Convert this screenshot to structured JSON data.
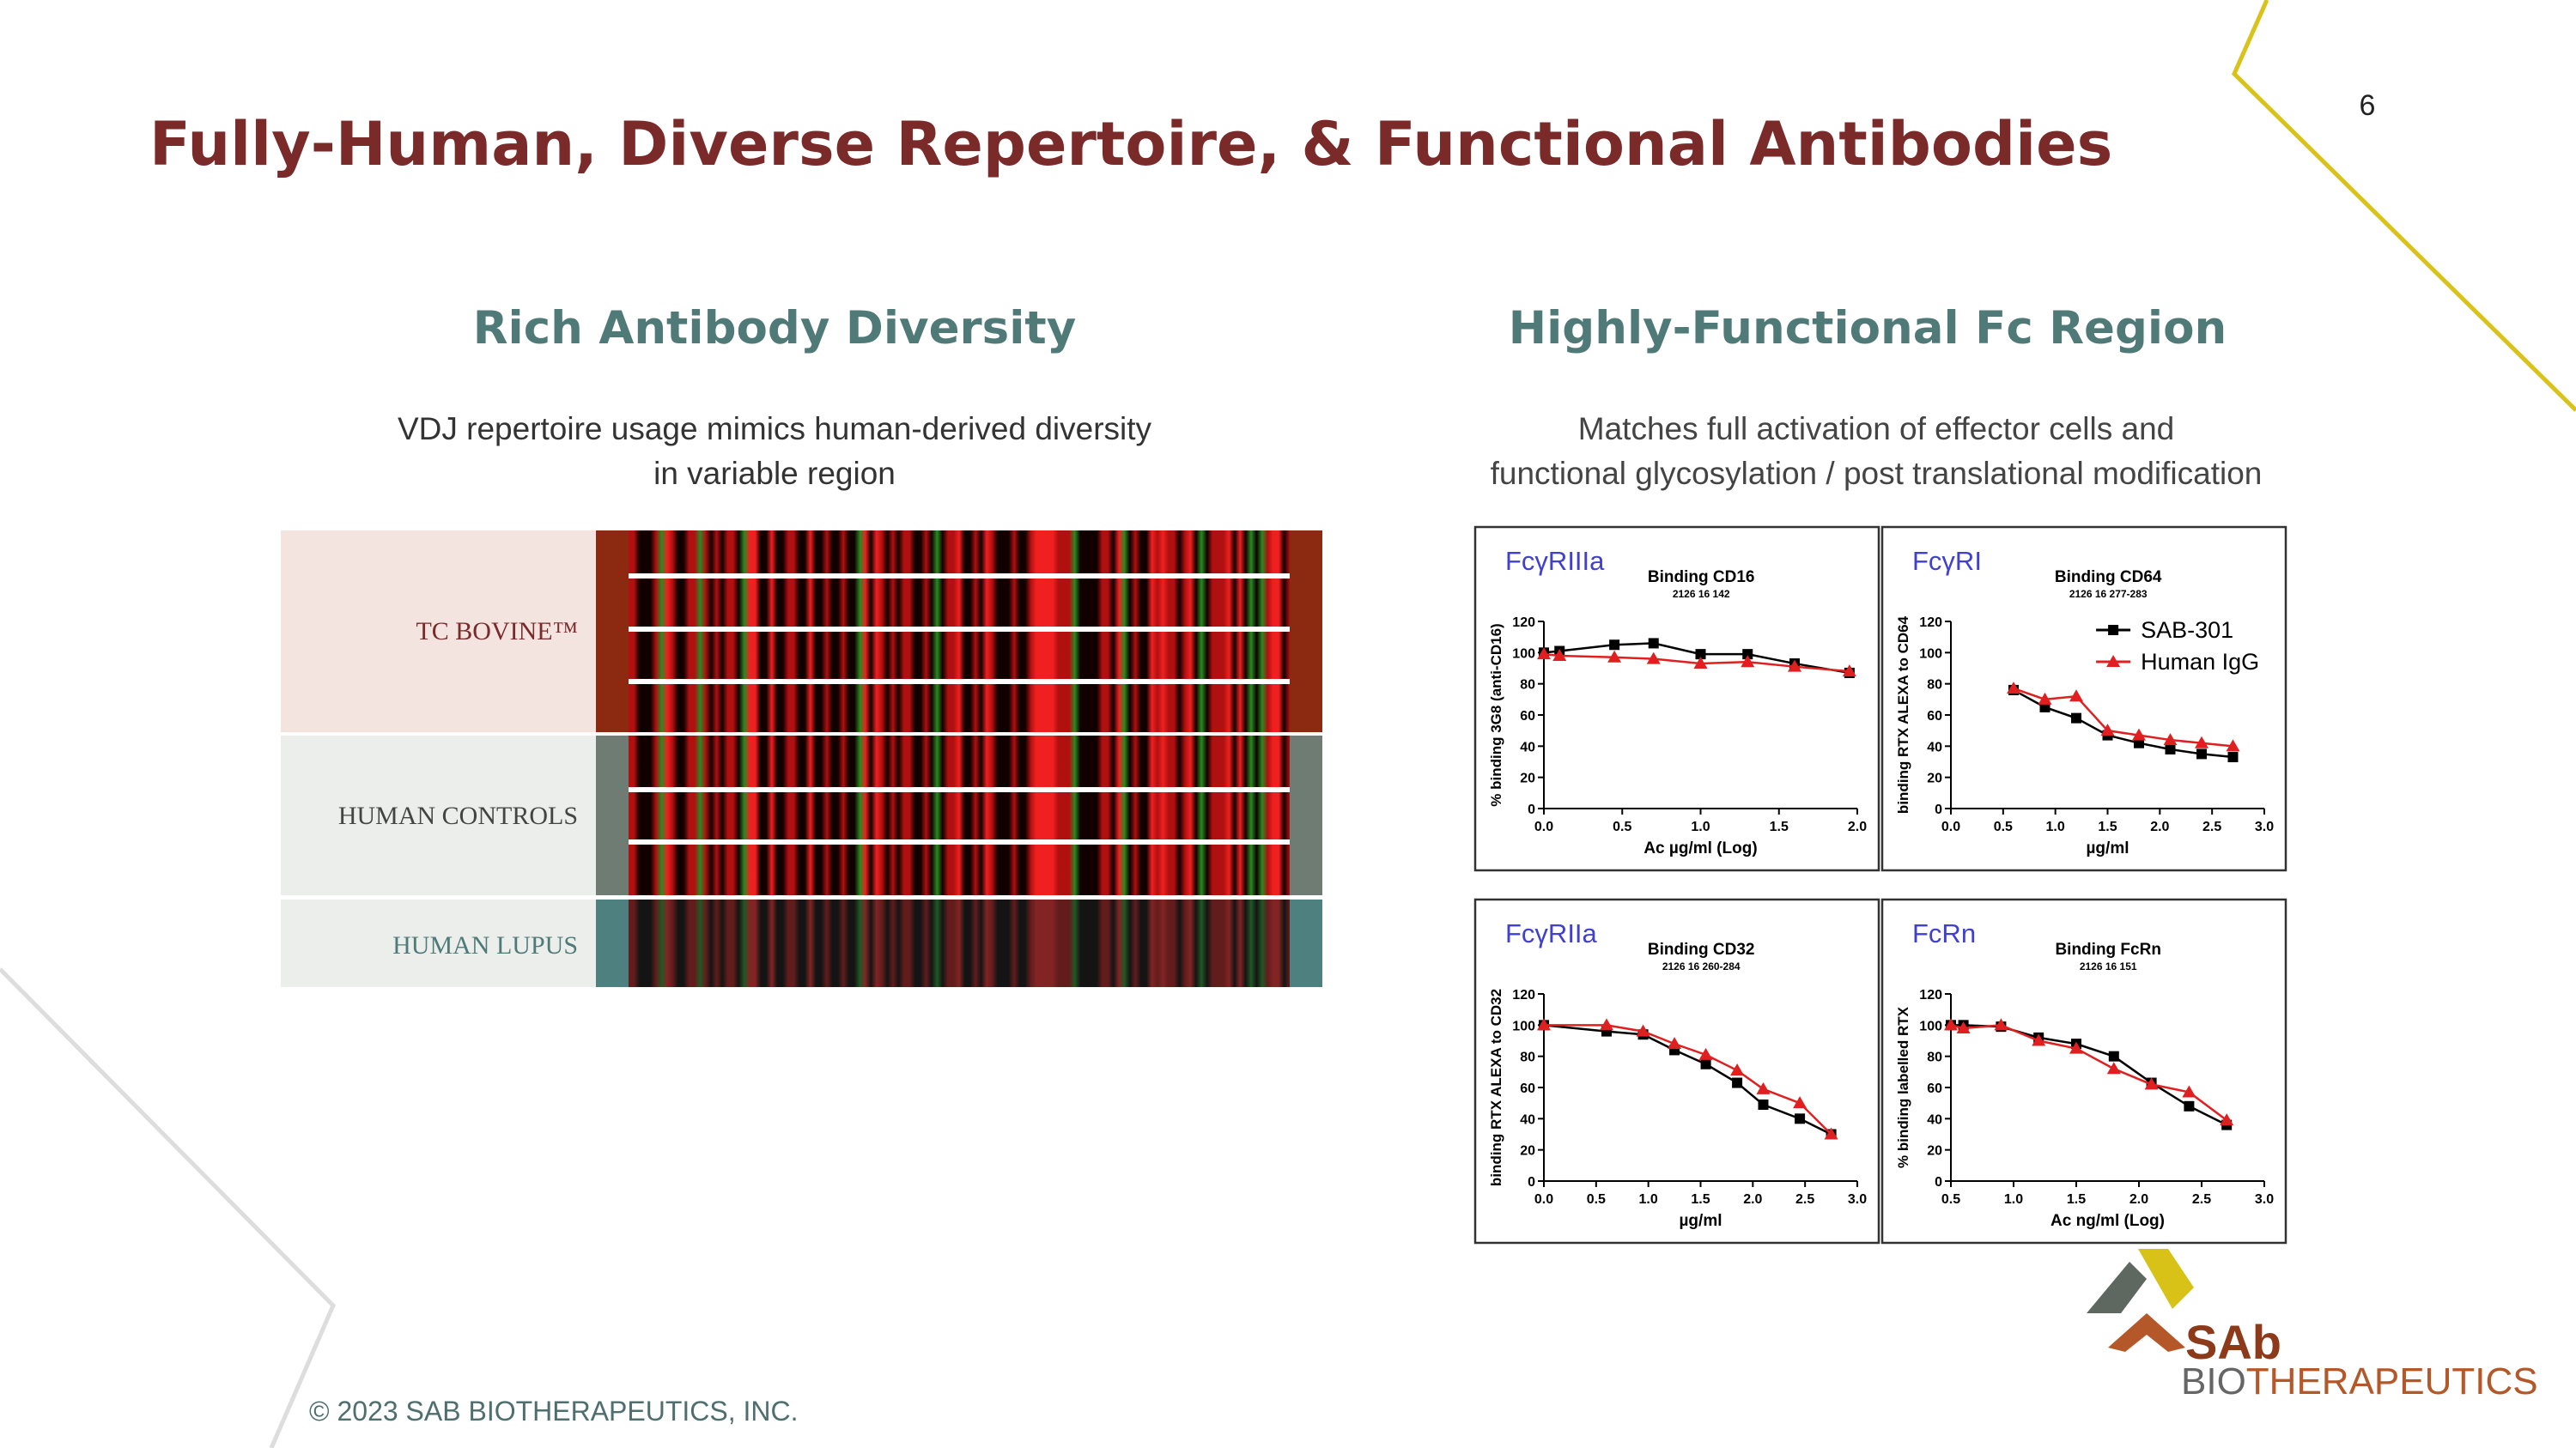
{
  "page_number": "6",
  "title": "Fully-Human, Diverse Repertoire, & Functional Antibodies",
  "left": {
    "heading": "Rich Antibody Diversity",
    "text_lines": [
      "VDJ repertoire usage mimics human-derived diversity",
      "in variable region"
    ],
    "rows": [
      "TC BOVINE™",
      "HUMAN CONTROLS",
      "HUMAN LUPUS"
    ]
  },
  "right": {
    "heading": "Highly-Functional Fc Region",
    "text_lines": [
      "Matches full activation of effector cells and",
      "functional glycosylation / post translational modification"
    ]
  },
  "chart_data": [
    {
      "type": "line",
      "label": "FcγRIIIa",
      "title": "Binding CD16",
      "subtitle": "2126 16 142",
      "y_label": "% binding 3G8 (anti-CD16)",
      "x_label": "Ac µg/ml (Log)",
      "x": [
        0,
        0.1,
        0.45,
        0.7,
        1.0,
        1.3,
        1.6,
        1.95
      ],
      "series": [
        {
          "color": "#000000",
          "marker": "square",
          "values": [
            100,
            101,
            105,
            106,
            99,
            99,
            93,
            87
          ]
        },
        {
          "color": "#e02020",
          "marker": "triangle",
          "values": [
            99,
            98,
            97,
            96,
            93,
            94,
            91,
            88
          ]
        }
      ],
      "xlim": [
        0,
        2
      ],
      "xticks": [
        {
          "value": 0,
          "label": "0.0"
        },
        0.5,
        {
          "value": 1,
          "label": "1.0"
        },
        1.5,
        {
          "value": 2,
          "label": "2.0"
        }
      ],
      "ylim": [
        0,
        120
      ],
      "yticks": [
        0,
        20,
        40,
        60,
        80,
        100,
        120
      ]
    },
    {
      "type": "line",
      "label": "FcγRI",
      "title": "Binding CD64",
      "subtitle": "2126 16 277-283",
      "y_label": "binding RTX ALEXA to CD64",
      "x_label": "µg/ml",
      "x": [
        0.6,
        0.9,
        1.2,
        1.5,
        1.8,
        2.1,
        2.4,
        2.7
      ],
      "series": [
        {
          "name": "SAB-301",
          "color": "#000000",
          "marker": "square",
          "values": [
            76,
            65,
            58,
            47,
            42,
            38,
            35,
            33
          ]
        },
        {
          "name": "Human IgG",
          "color": "#e02020",
          "marker": "triangle",
          "values": [
            77,
            70,
            72,
            50,
            47,
            44,
            42,
            40
          ]
        }
      ],
      "xlim": [
        0,
        3
      ],
      "xticks": [
        {
          "value": 0,
          "label": "0.0"
        },
        0.5,
        {
          "value": 1,
          "label": "1.0"
        },
        1.5,
        {
          "value": 2,
          "label": "2.0"
        },
        2.5,
        {
          "value": 3,
          "label": "3.0"
        }
      ],
      "ylim": [
        0,
        120
      ],
      "yticks": [
        0,
        20,
        40,
        60,
        80,
        100,
        120
      ],
      "legend": "upper right"
    },
    {
      "type": "line",
      "label": "FcγRIIa",
      "title": "Binding CD32",
      "subtitle": "2126 16 260-284",
      "y_label": "binding RTX ALEXA to CD32",
      "x_label": "µg/ml",
      "x": [
        0,
        0.6,
        0.95,
        1.25,
        1.55,
        1.85,
        2.1,
        2.45,
        2.75
      ],
      "series": [
        {
          "color": "#000000",
          "marker": "square",
          "values": [
            100,
            96,
            94,
            84,
            75,
            63,
            49,
            40,
            30
          ]
        },
        {
          "color": "#e02020",
          "marker": "triangle",
          "values": [
            100,
            100,
            96,
            88,
            81,
            71,
            59,
            50,
            30
          ]
        }
      ],
      "xlim": [
        0,
        3
      ],
      "xticks": [
        {
          "value": 0,
          "label": "0.0"
        },
        0.5,
        {
          "value": 1,
          "label": "1.0"
        },
        1.5,
        {
          "value": 2,
          "label": "2.0"
        },
        2.5,
        {
          "value": 3,
          "label": "3.0"
        }
      ],
      "ylim": [
        0,
        120
      ],
      "yticks": [
        0,
        20,
        40,
        60,
        80,
        100,
        120
      ]
    },
    {
      "type": "line",
      "label": "FcRn",
      "title": "Binding FcRn",
      "subtitle": "2126 16 151",
      "y_label": "% binding labelled RTX",
      "x_label": "Ac ng/ml (Log)",
      "x": [
        0.5,
        0.6,
        0.9,
        1.2,
        1.5,
        1.8,
        2.1,
        2.4,
        2.7
      ],
      "series": [
        {
          "color": "#000000",
          "marker": "square",
          "values": [
            100,
            100,
            99,
            92,
            88,
            80,
            63,
            48,
            36
          ]
        },
        {
          "color": "#e02020",
          "marker": "triangle",
          "values": [
            100,
            98,
            100,
            90,
            85,
            72,
            62,
            57,
            39
          ]
        }
      ],
      "xlim": [
        0.5,
        3
      ],
      "xticks": [
        0.5,
        {
          "value": 1,
          "label": "1.0"
        },
        1.5,
        {
          "value": 2,
          "label": "2.0"
        },
        2.5,
        {
          "value": 3,
          "label": "3.0"
        }
      ],
      "ylim": [
        0,
        120
      ],
      "yticks": [
        0,
        20,
        40,
        60,
        80,
        100,
        120
      ]
    }
  ],
  "footer": "© 2023 SAB BIOTHERAPEUTICS, INC.",
  "logo": {
    "mark": "SAb",
    "text_1": "BIO",
    "text_2": "THERAPEUTICS"
  }
}
